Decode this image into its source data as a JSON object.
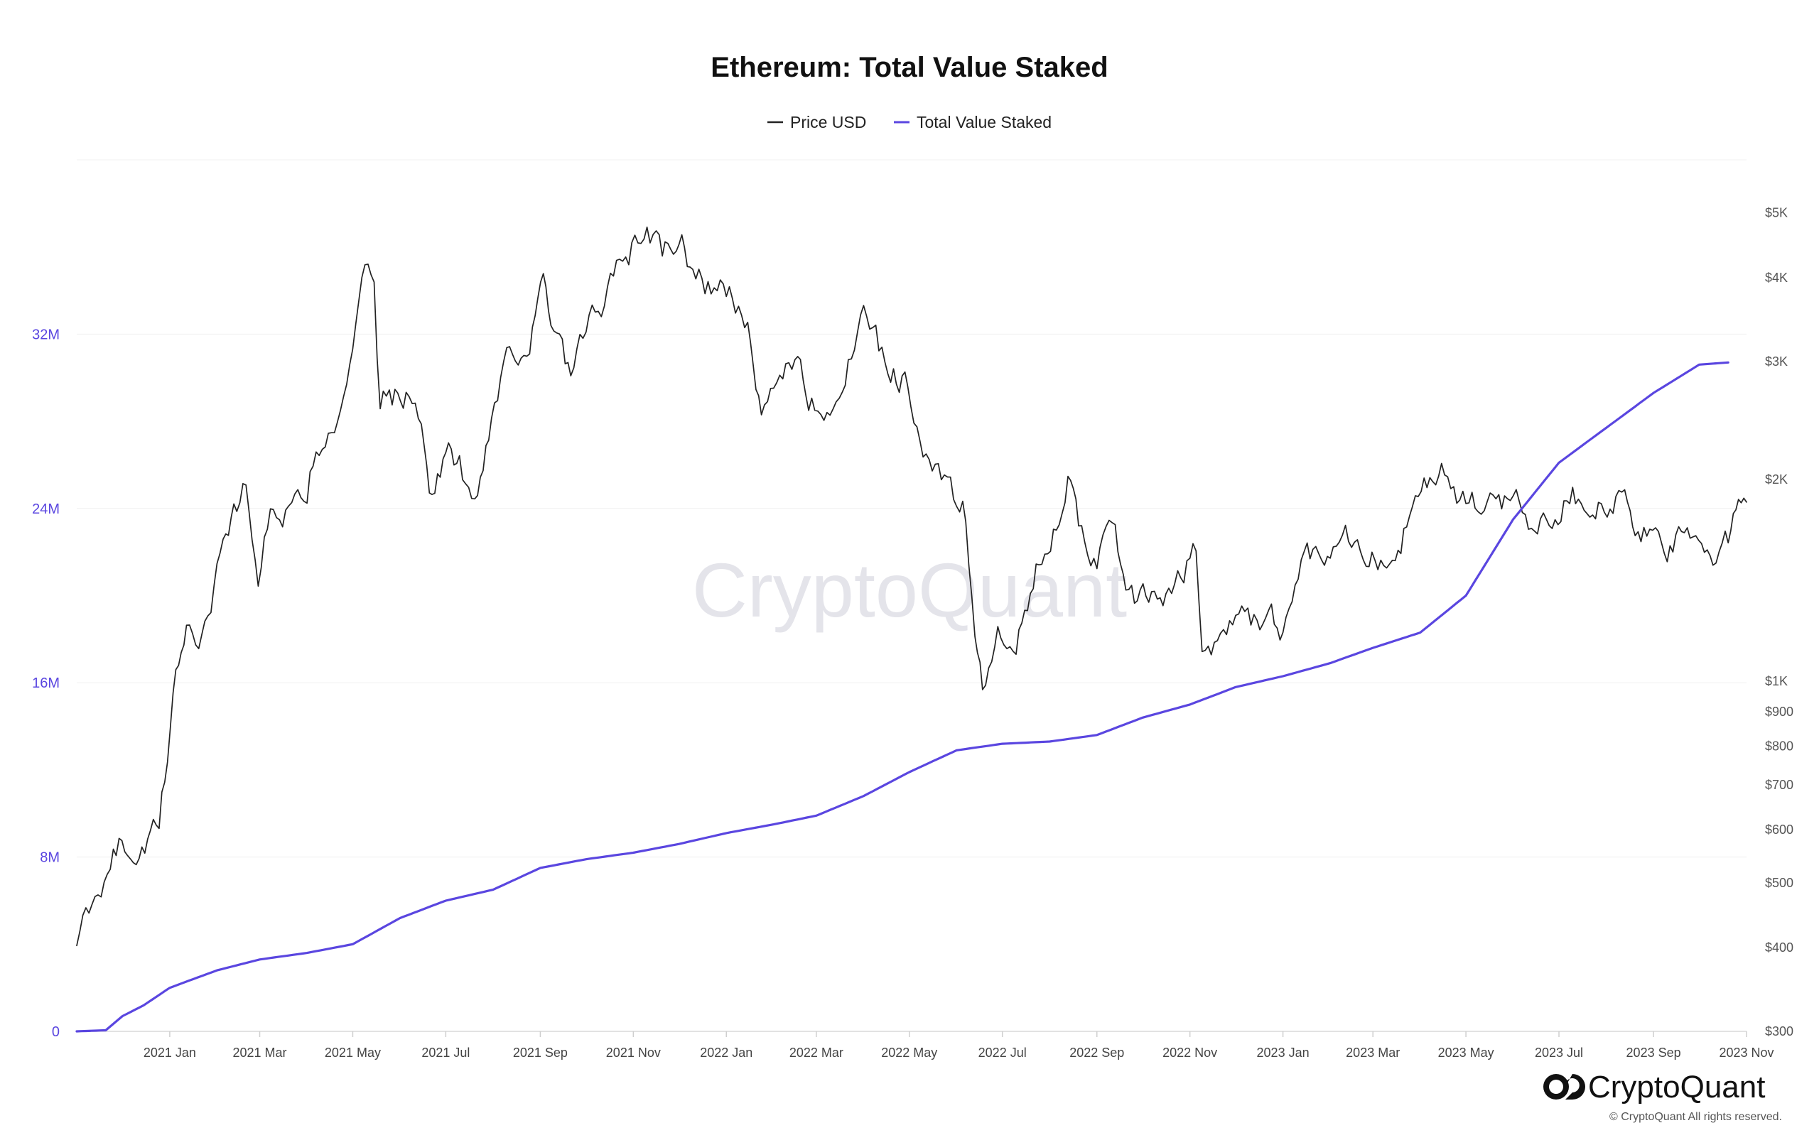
{
  "chart_data": {
    "type": "line",
    "title": "Ethereum: Total Value Staked",
    "legend": {
      "placement": "top-center",
      "items": [
        {
          "name": "Price USD",
          "color": "#222222"
        },
        {
          "name": "Total Value Staked",
          "color": "#5a46e0"
        }
      ]
    },
    "grid": true,
    "x_ticks": [
      "2021 Jan",
      "2021 Mar",
      "2021 May",
      "2021 Jul",
      "2021 Sep",
      "2021 Nov",
      "2022 Jan",
      "2022 Mar",
      "2022 May",
      "2022 Jul",
      "2022 Sep",
      "2022 Nov",
      "2023 Jan",
      "2023 Mar",
      "2023 May",
      "2023 Jul",
      "2023 Sep",
      "2023 Nov"
    ],
    "x_range": [
      "2020-11-01",
      "2023-11-01"
    ],
    "left_axis": {
      "series": "Total Value Staked",
      "range": [
        0,
        40000000
      ],
      "ticks": [
        {
          "value": 0,
          "label": "0"
        },
        {
          "value": 8000000,
          "label": "8M"
        },
        {
          "value": 16000000,
          "label": "16M"
        },
        {
          "value": 24000000,
          "label": "24M"
        },
        {
          "value": 32000000,
          "label": "32M"
        }
      ]
    },
    "right_axis": {
      "series": "Price USD",
      "scale": "log",
      "range": [
        300,
        6000
      ],
      "ticks": [
        {
          "value": 300,
          "label": "$300"
        },
        {
          "value": 400,
          "label": "$400"
        },
        {
          "value": 500,
          "label": "$500"
        },
        {
          "value": 600,
          "label": "$600"
        },
        {
          "value": 700,
          "label": "$700"
        },
        {
          "value": 800,
          "label": "$800"
        },
        {
          "value": 900,
          "label": "$900"
        },
        {
          "value": 1000,
          "label": "$1K"
        },
        {
          "value": 2000,
          "label": "$2K"
        },
        {
          "value": 3000,
          "label": "$3K"
        },
        {
          "value": 4000,
          "label": "$4K"
        },
        {
          "value": 5000,
          "label": "$5K"
        }
      ]
    },
    "series": [
      {
        "name": "Price USD",
        "axis": "right",
        "color": "#222222",
        "points": [
          [
            "2020-11-01",
            420
          ],
          [
            "2020-11-15",
            460
          ],
          [
            "2020-11-25",
            580
          ],
          [
            "2020-12-10",
            560
          ],
          [
            "2020-12-25",
            600
          ],
          [
            "2021-01-05",
            1000
          ],
          [
            "2021-01-12",
            1250
          ],
          [
            "2021-01-20",
            1150
          ],
          [
            "2021-01-28",
            1300
          ],
          [
            "2021-02-05",
            1650
          ],
          [
            "2021-02-12",
            1800
          ],
          [
            "2021-02-20",
            1950
          ],
          [
            "2021-02-28",
            1450
          ],
          [
            "2021-03-10",
            1850
          ],
          [
            "2021-03-20",
            1780
          ],
          [
            "2021-03-30",
            1800
          ],
          [
            "2021-04-05",
            2100
          ],
          [
            "2021-04-15",
            2400
          ],
          [
            "2021-04-25",
            2550
          ],
          [
            "2021-05-05",
            3600
          ],
          [
            "2021-05-11",
            4150
          ],
          [
            "2021-05-15",
            3800
          ],
          [
            "2021-05-19",
            2500
          ],
          [
            "2021-05-25",
            2700
          ],
          [
            "2021-06-05",
            2650
          ],
          [
            "2021-06-15",
            2500
          ],
          [
            "2021-06-22",
            1900
          ],
          [
            "2021-07-01",
            2200
          ],
          [
            "2021-07-10",
            2100
          ],
          [
            "2021-07-20",
            1800
          ],
          [
            "2021-07-31",
            2500
          ],
          [
            "2021-08-10",
            3100
          ],
          [
            "2021-08-25",
            3200
          ],
          [
            "2021-09-03",
            3900
          ],
          [
            "2021-09-08",
            3400
          ],
          [
            "2021-09-21",
            2800
          ],
          [
            "2021-10-01",
            3300
          ],
          [
            "2021-10-15",
            3800
          ],
          [
            "2021-10-25",
            4200
          ],
          [
            "2021-11-10",
            4800
          ],
          [
            "2021-11-20",
            4300
          ],
          [
            "2021-12-01",
            4600
          ],
          [
            "2021-12-10",
            4100
          ],
          [
            "2021-12-20",
            3900
          ],
          [
            "2022-01-05",
            3800
          ],
          [
            "2022-01-15",
            3300
          ],
          [
            "2022-01-24",
            2400
          ],
          [
            "2022-02-05",
            2900
          ],
          [
            "2022-02-15",
            3100
          ],
          [
            "2022-02-24",
            2600
          ],
          [
            "2022-03-10",
            2600
          ],
          [
            "2022-03-20",
            2900
          ],
          [
            "2022-04-03",
            3500
          ],
          [
            "2022-04-15",
            3000
          ],
          [
            "2022-04-30",
            2800
          ],
          [
            "2022-05-10",
            2300
          ],
          [
            "2022-05-20",
            2000
          ],
          [
            "2022-06-05",
            1800
          ],
          [
            "2022-06-13",
            1200
          ],
          [
            "2022-06-18",
            1000
          ],
          [
            "2022-06-28",
            1150
          ],
          [
            "2022-07-10",
            1100
          ],
          [
            "2022-07-25",
            1500
          ],
          [
            "2022-08-13",
            2000
          ],
          [
            "2022-08-20",
            1650
          ],
          [
            "2022-09-01",
            1550
          ],
          [
            "2022-09-13",
            1700
          ],
          [
            "2022-09-20",
            1300
          ],
          [
            "2022-10-05",
            1330
          ],
          [
            "2022-10-20",
            1300
          ],
          [
            "2022-11-05",
            1600
          ],
          [
            "2022-11-09",
            1100
          ],
          [
            "2022-11-25",
            1200
          ],
          [
            "2022-12-15",
            1250
          ],
          [
            "2023-01-01",
            1200
          ],
          [
            "2023-01-15",
            1550
          ],
          [
            "2023-02-01",
            1600
          ],
          [
            "2023-02-15",
            1650
          ],
          [
            "2023-03-10",
            1450
          ],
          [
            "2023-03-25",
            1750
          ],
          [
            "2023-04-15",
            2100
          ],
          [
            "2023-04-25",
            1850
          ],
          [
            "2023-05-15",
            1800
          ],
          [
            "2023-06-01",
            1900
          ],
          [
            "2023-06-15",
            1700
          ],
          [
            "2023-07-10",
            1900
          ],
          [
            "2023-07-25",
            1850
          ],
          [
            "2023-08-15",
            1850
          ],
          [
            "2023-08-20",
            1650
          ],
          [
            "2023-09-10",
            1600
          ],
          [
            "2023-09-25",
            1620
          ],
          [
            "2023-10-10",
            1560
          ],
          [
            "2023-10-20",
            1600
          ],
          [
            "2023-10-25",
            1800
          ],
          [
            "2023-11-01",
            1850
          ]
        ]
      },
      {
        "name": "Total Value Staked",
        "axis": "left",
        "color": "#5a46e0",
        "points": [
          [
            "2020-11-01",
            0
          ],
          [
            "2020-11-20",
            50000
          ],
          [
            "2020-12-01",
            700000
          ],
          [
            "2020-12-15",
            1200000
          ],
          [
            "2021-01-01",
            2000000
          ],
          [
            "2021-02-01",
            2800000
          ],
          [
            "2021-03-01",
            3300000
          ],
          [
            "2021-04-01",
            3600000
          ],
          [
            "2021-05-01",
            4000000
          ],
          [
            "2021-06-01",
            5200000
          ],
          [
            "2021-07-01",
            6000000
          ],
          [
            "2021-08-01",
            6500000
          ],
          [
            "2021-09-01",
            7500000
          ],
          [
            "2021-10-01",
            7900000
          ],
          [
            "2021-11-01",
            8200000
          ],
          [
            "2021-12-01",
            8600000
          ],
          [
            "2022-01-01",
            9100000
          ],
          [
            "2022-02-01",
            9500000
          ],
          [
            "2022-03-01",
            9900000
          ],
          [
            "2022-04-01",
            10800000
          ],
          [
            "2022-05-01",
            11900000
          ],
          [
            "2022-06-01",
            12900000
          ],
          [
            "2022-07-01",
            13200000
          ],
          [
            "2022-08-01",
            13300000
          ],
          [
            "2022-09-01",
            13600000
          ],
          [
            "2022-10-01",
            14400000
          ],
          [
            "2022-11-01",
            15000000
          ],
          [
            "2022-12-01",
            15800000
          ],
          [
            "2023-01-01",
            16300000
          ],
          [
            "2023-02-01",
            16900000
          ],
          [
            "2023-03-01",
            17600000
          ],
          [
            "2023-04-01",
            18300000
          ],
          [
            "2023-05-01",
            20000000
          ],
          [
            "2023-06-01",
            23500000
          ],
          [
            "2023-07-01",
            26100000
          ],
          [
            "2023-08-01",
            27700000
          ],
          [
            "2023-09-01",
            29300000
          ],
          [
            "2023-10-01",
            30600000
          ],
          [
            "2023-10-20",
            30700000
          ]
        ]
      }
    ]
  },
  "watermark": "CryptoQuant",
  "brand": {
    "name": "CryptoQuant",
    "copyright": "© CryptoQuant All rights reserved."
  }
}
